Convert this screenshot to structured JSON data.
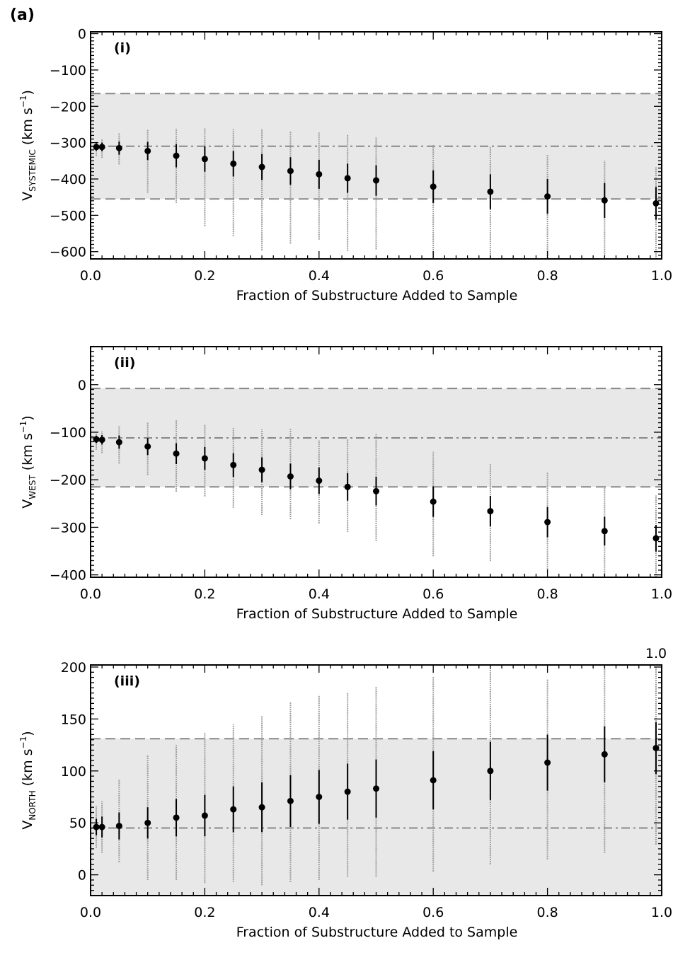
{
  "figure_label": "(a)",
  "chart_data": [
    {
      "type": "scatter",
      "panel_label": "(i)",
      "xlabel": "Fraction of Substructure Added to Sample",
      "ylabel_main": "V",
      "ylabel_sub": "SYSTEMIC",
      "ylabel_units": " (km s",
      "ylabel_exp": "−1",
      "ylabel_close": ")",
      "xlim": [
        0.0,
        1.0
      ],
      "ylim": [
        -620,
        5
      ],
      "xticks": [
        0.0,
        0.2,
        0.4,
        0.6,
        0.8,
        1.0
      ],
      "xtick_labels": [
        "0.0",
        "0.2",
        "0.4",
        "0.6",
        "0.8",
        "1.0"
      ],
      "yticks": [
        0,
        -100,
        -200,
        -300,
        -400,
        -500,
        -600
      ],
      "ytick_labels": [
        "0",
        "−100",
        "−200",
        "−300",
        "−400",
        "−500",
        "−600"
      ],
      "band": [
        -455,
        -165
      ],
      "dashed_lines": [
        -165,
        -455
      ],
      "dashdot_line": -310,
      "x": [
        0.01,
        0.02,
        0.05,
        0.1,
        0.15,
        0.2,
        0.25,
        0.3,
        0.35,
        0.4,
        0.45,
        0.5,
        0.6,
        0.7,
        0.8,
        0.9,
        0.99
      ],
      "y": [
        -312,
        -312,
        -315,
        -323,
        -336,
        -345,
        -358,
        -367,
        -378,
        -387,
        -398,
        -404,
        -421,
        -435,
        -448,
        -459,
        -467
      ],
      "err_inner": [
        10,
        12,
        18,
        25,
        32,
        35,
        35,
        36,
        38,
        40,
        40,
        42,
        45,
        48,
        48,
        48,
        45
      ],
      "err_outer_lo": [
        25,
        30,
        45,
        115,
        130,
        185,
        200,
        230,
        200,
        180,
        200,
        190,
        200,
        185,
        170,
        160,
        155
      ],
      "err_outer_hi": [
        15,
        22,
        42,
        60,
        75,
        85,
        95,
        105,
        110,
        115,
        120,
        120,
        115,
        125,
        115,
        110,
        100
      ]
    },
    {
      "type": "scatter",
      "panel_label": "(ii)",
      "xlabel": "Fraction of Substructure Added to Sample",
      "ylabel_main": "V",
      "ylabel_sub": "WEST",
      "ylabel_units": " (km s",
      "ylabel_exp": "−1",
      "ylabel_close": ")",
      "xlim": [
        0.0,
        1.0
      ],
      "ylim": [
        -405,
        80
      ],
      "xticks": [
        0.0,
        0.2,
        0.4,
        0.6,
        0.8,
        1.0
      ],
      "xtick_labels": [
        "0.0",
        "0.2",
        "0.4",
        "0.6",
        "0.8",
        "1.0"
      ],
      "yticks": [
        0,
        -100,
        -200,
        -300,
        -400
      ],
      "ytick_labels": [
        "0",
        "−100",
        "−200",
        "−300",
        "−400"
      ],
      "band": [
        -215,
        -8
      ],
      "dashed_lines": [
        -8,
        -215
      ],
      "dashdot_line": -112,
      "x": [
        0.01,
        0.02,
        0.05,
        0.1,
        0.15,
        0.2,
        0.25,
        0.3,
        0.35,
        0.4,
        0.45,
        0.5,
        0.6,
        0.7,
        0.8,
        0.9,
        0.99
      ],
      "y": [
        -115,
        -116,
        -121,
        -130,
        -145,
        -155,
        -169,
        -179,
        -193,
        -202,
        -215,
        -224,
        -246,
        -266,
        -289,
        -308,
        -323
      ],
      "err_inner": [
        8,
        10,
        14,
        18,
        22,
        24,
        25,
        26,
        27,
        28,
        29,
        30,
        32,
        32,
        32,
        30,
        28
      ],
      "err_outer_lo": [
        22,
        28,
        45,
        60,
        80,
        80,
        90,
        95,
        90,
        90,
        95,
        105,
        115,
        105,
        100,
        95,
        85
      ],
      "err_outer_hi": [
        12,
        18,
        35,
        50,
        70,
        72,
        78,
        85,
        100,
        85,
        100,
        120,
        105,
        100,
        105,
        95,
        90
      ]
    },
    {
      "type": "scatter",
      "panel_label": "(iii)",
      "xlabel": "Fraction of Substructure Added to Sample",
      "ylabel_main": "V",
      "ylabel_sub": "NORTH",
      "ylabel_units": " (km s",
      "ylabel_exp": "−1",
      "ylabel_close": ")",
      "top_right_label": "1.0",
      "xlim": [
        0.0,
        1.0
      ],
      "ylim": [
        -20,
        202
      ],
      "xticks": [
        0.0,
        0.2,
        0.4,
        0.6,
        0.8,
        1.0
      ],
      "xtick_labels": [
        "0.0",
        "0.2",
        "0.4",
        "0.6",
        "0.8",
        "1.0"
      ],
      "yticks": [
        0,
        50,
        100,
        150,
        200
      ],
      "ytick_labels": [
        "0",
        "50",
        "100",
        "150",
        "200"
      ],
      "band": [
        -20,
        131
      ],
      "dashed_lines": [
        131
      ],
      "dashdot_line": 45,
      "x": [
        0.01,
        0.02,
        0.05,
        0.1,
        0.15,
        0.2,
        0.25,
        0.3,
        0.35,
        0.4,
        0.45,
        0.5,
        0.6,
        0.7,
        0.8,
        0.9,
        0.99
      ],
      "y": [
        46,
        46,
        47,
        50,
        55,
        57,
        63,
        65,
        71,
        75,
        80,
        83,
        91,
        100,
        108,
        116,
        122
      ],
      "err_inner": [
        8,
        10,
        13,
        15,
        18,
        20,
        22,
        24,
        25,
        26,
        27,
        28,
        28,
        28,
        27,
        27,
        25
      ],
      "err_outer_lo": [
        20,
        25,
        35,
        55,
        60,
        65,
        70,
        75,
        78,
        80,
        82,
        85,
        88,
        90,
        93,
        95,
        93
      ],
      "err_outer_hi": [
        20,
        25,
        45,
        65,
        70,
        80,
        82,
        88,
        95,
        98,
        95,
        98,
        100,
        100,
        80,
        85,
        78
      ]
    }
  ]
}
